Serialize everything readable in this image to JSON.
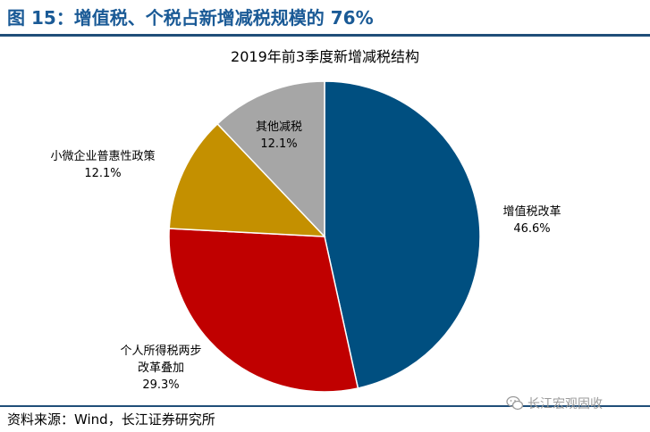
{
  "figure": {
    "title": "图 15：增值税、个税占新增减税规模的 76%",
    "source": "资料来源：Wind，长江证券研究所",
    "watermark": "长江宏观固收",
    "watermark_icon": "wechat-icon"
  },
  "chart_data": {
    "type": "pie",
    "title": "2019年前3季度新增减税结构",
    "slices": [
      {
        "name": "增值税改革",
        "value": 46.6,
        "value_label": "46.6%",
        "color": "#004f80"
      },
      {
        "name": "个人所得税两步改革叠加",
        "name_lines": [
          "个人所得税两步",
          "改革叠加"
        ],
        "value": 29.3,
        "value_label": "29.3%",
        "color": "#c00000"
      },
      {
        "name": "小微企业普惠性政策",
        "value": 12.1,
        "value_label": "12.1%",
        "color": "#c49000"
      },
      {
        "name": "其他减税",
        "value": 12.1,
        "value_label": "12.1%",
        "color": "#a6a6a6"
      }
    ],
    "start_angle": "12 o'clock",
    "direction": "clockwise",
    "legend": "none"
  }
}
